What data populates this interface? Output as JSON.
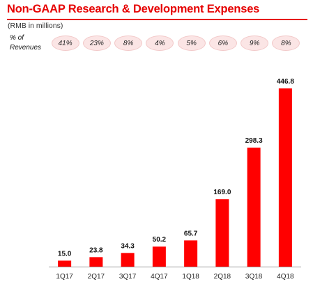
{
  "title": "Non-GAAP Research & Development Expenses",
  "subtitle": "(RMB in millions)",
  "revenue_label": "% of Revenues",
  "chart_data": {
    "type": "bar",
    "title": "Non-GAAP Research & Development Expenses",
    "subtitle": "(RMB in millions)",
    "categories": [
      "1Q17",
      "2Q17",
      "3Q17",
      "4Q17",
      "1Q18",
      "2Q18",
      "3Q18",
      "4Q18"
    ],
    "values": [
      15.0,
      23.8,
      34.3,
      50.2,
      65.7,
      169.0,
      298.3,
      446.8
    ],
    "value_labels": [
      "15.0",
      "23.8",
      "34.3",
      "50.2",
      "65.7",
      "169.0",
      "298.3",
      "446.8"
    ],
    "percent_of_revenues": [
      "41%",
      "23%",
      "8%",
      "4%",
      "5%",
      "6%",
      "9%",
      "8%"
    ],
    "ylim": [
      0,
      446.8
    ],
    "xlabel": "",
    "ylabel": "",
    "grid": false,
    "bar_color": "#ff0000"
  }
}
